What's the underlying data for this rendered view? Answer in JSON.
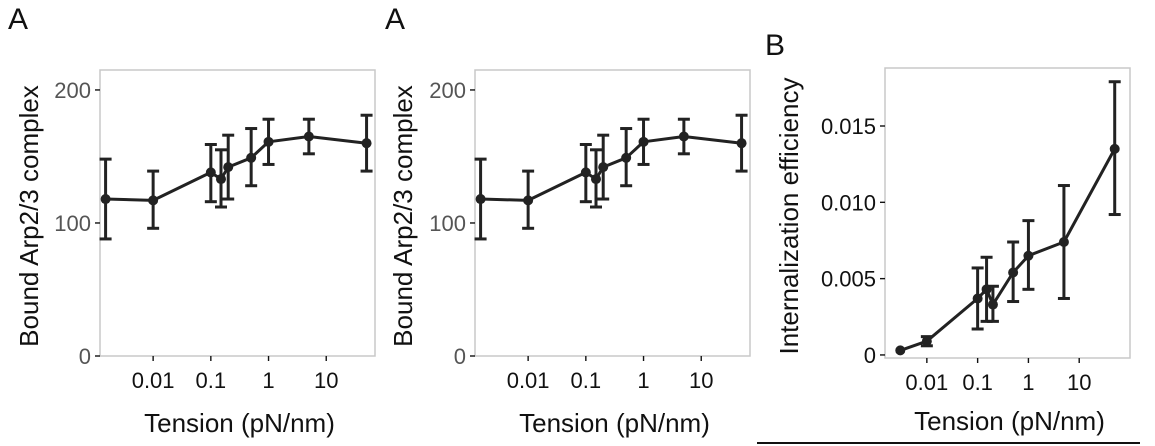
{
  "chart_data": [
    {
      "type": "line",
      "panel_label": "A",
      "title": "",
      "xlabel": "Tension (pN/nm)",
      "ylabel": "Bound Arp2/3 complex",
      "xscale": "log",
      "xlim": [
        0.0012,
        70
      ],
      "ylim": [
        0,
        215
      ],
      "x_ticks": [
        0.01,
        0.1,
        1,
        10
      ],
      "x_tick_labels": [
        "0.01",
        "0.1",
        "1",
        "10"
      ],
      "y_ticks": [
        0,
        100,
        200
      ],
      "y_tick_labels": [
        "0",
        "100",
        "200"
      ],
      "grid": false,
      "series": [
        {
          "name": "Bound Arp2/3 complex",
          "x": [
            0.0015,
            0.01,
            0.1,
            0.15,
            0.2,
            0.5,
            1,
            5,
            50
          ],
          "y": [
            118,
            117,
            138,
            133,
            142,
            149,
            161,
            165,
            160
          ],
          "err_low": [
            88,
            96,
            116,
            112,
            118,
            128,
            144,
            152,
            139
          ],
          "err_high": [
            148,
            139,
            159,
            155,
            166,
            171,
            178,
            178,
            181
          ]
        }
      ]
    },
    {
      "type": "line",
      "panel_label": "A",
      "title": "",
      "xlabel": "Tension (pN/nm)",
      "ylabel": "Bound Arp2/3 complex",
      "xscale": "log",
      "xlim": [
        0.0012,
        70
      ],
      "ylim": [
        0,
        215
      ],
      "x_ticks": [
        0.01,
        0.1,
        1,
        10
      ],
      "x_tick_labels": [
        "0.01",
        "0.1",
        "1",
        "10"
      ],
      "y_ticks": [
        0,
        100,
        200
      ],
      "y_tick_labels": [
        "0",
        "100",
        "200"
      ],
      "grid": false,
      "series": [
        {
          "name": "Bound Arp2/3 complex",
          "x": [
            0.0015,
            0.01,
            0.1,
            0.15,
            0.2,
            0.5,
            1,
            5,
            50
          ],
          "y": [
            118,
            117,
            138,
            133,
            142,
            149,
            161,
            165,
            160
          ],
          "err_low": [
            88,
            96,
            116,
            112,
            118,
            128,
            144,
            152,
            139
          ],
          "err_high": [
            148,
            139,
            159,
            155,
            166,
            171,
            178,
            178,
            181
          ]
        }
      ]
    },
    {
      "type": "line",
      "panel_label": "B",
      "title": "",
      "xlabel": "Tension (pN/nm)",
      "ylabel": "Internalization efficiency",
      "xscale": "log",
      "xlim": [
        0.0015,
        100
      ],
      "ylim": [
        -0.0002,
        0.0188
      ],
      "x_ticks": [
        0.01,
        0.1,
        1,
        10
      ],
      "x_tick_labels": [
        "0.01",
        "0.1",
        "1",
        "10"
      ],
      "y_ticks": [
        0,
        0.005,
        0.01,
        0.015
      ],
      "y_tick_labels": [
        "0",
        "0.005",
        "0.010",
        "0.015"
      ],
      "grid": false,
      "series": [
        {
          "name": "Internalization efficiency",
          "x": [
            0.003,
            0.01,
            0.1,
            0.15,
            0.2,
            0.5,
            1,
            5,
            50
          ],
          "y": [
            0.0003,
            0.0009,
            0.0037,
            0.0043,
            0.0033,
            0.0054,
            0.0065,
            0.0074,
            0.0135
          ],
          "err_low": [
            0.0003,
            0.0006,
            0.0017,
            0.0022,
            0.0022,
            0.0035,
            0.0043,
            0.0037,
            0.0092
          ],
          "err_high": [
            0.0003,
            0.0012,
            0.0057,
            0.0064,
            0.0045,
            0.0074,
            0.0088,
            0.0111,
            0.0179
          ]
        }
      ]
    }
  ]
}
